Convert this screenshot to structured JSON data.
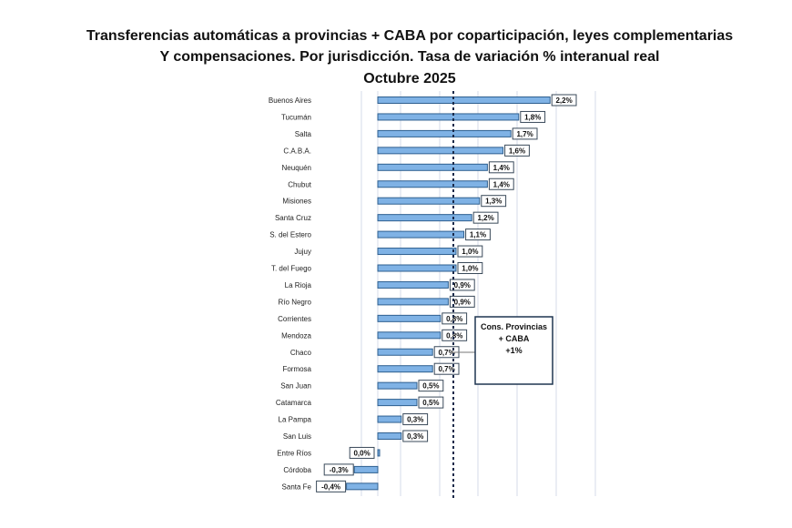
{
  "chart_data": {
    "type": "bar",
    "orientation": "horizontal",
    "title_lines": [
      "Transferencias automáticas  a provincias  + CABA por coparticipación,  leyes complementarias",
      "Y compensaciones.  Por jurisdicción. Tasa de variación % interanual  real",
      "Octubre  2025"
    ],
    "categories": [
      "Buenos Aires",
      "Tucumán",
      "Salta",
      "C.A.B.A.",
      "Neuquén",
      "Chubut",
      "Misiones",
      "Santa Cruz",
      "S. del Estero",
      "Jujuy",
      "T. del Fuego",
      "La Rioja",
      "Río Negro",
      "Corrientes",
      "Mendoza",
      "Chaco",
      "Formosa",
      "San Juan",
      "Catamarca",
      "La Pampa",
      "San Luis",
      "Entre Ríos",
      "Córdoba",
      "Santa Fe"
    ],
    "values": [
      2.2,
      1.8,
      1.7,
      1.6,
      1.4,
      1.4,
      1.3,
      1.2,
      1.1,
      1.0,
      1.0,
      0.9,
      0.9,
      0.8,
      0.8,
      0.7,
      0.7,
      0.5,
      0.5,
      0.3,
      0.3,
      0.0,
      -0.3,
      -0.4
    ],
    "data_labels": [
      "2,2%",
      "1,8%",
      "1,7%",
      "1,6%",
      "1,4%",
      "1,4%",
      "1,3%",
      "1,2%",
      "1,1%",
      "1,0%",
      "1,0%",
      "0,9%",
      "0,9%",
      "0,8%",
      "0,8%",
      "0,7%",
      "0,7%",
      "0,5%",
      "0,5%",
      "0,3%",
      "0,3%",
      "0,0%",
      "-0,3%",
      "-0,4%"
    ],
    "reference_line": {
      "value": 1.0,
      "style": "dashed"
    },
    "annotation": {
      "lines": [
        "Cons. Provincias",
        "+ CABA",
        "+1%"
      ]
    },
    "xlim": [
      -0.6,
      2.6
    ],
    "grid": true,
    "colors": {
      "bar": "#7fb2e5",
      "bar_border": "#2e5f8f",
      "grid": "#d4dbe8",
      "reference": "#1a2a4a"
    }
  }
}
